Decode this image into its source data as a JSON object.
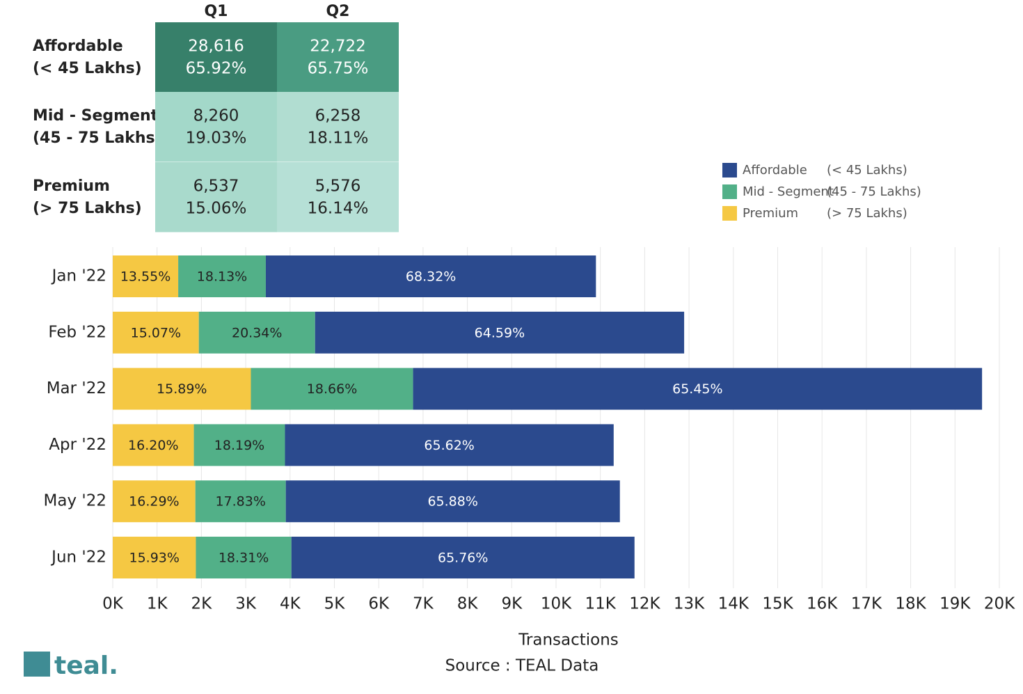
{
  "table": {
    "columns": [
      "Q1",
      "Q2"
    ],
    "rows": [
      {
        "label": [
          "Affordable",
          "(< 45 Lakhs)"
        ],
        "cells": [
          [
            "28,616",
            "65.92%"
          ],
          [
            "22,722",
            "65.75%"
          ]
        ]
      },
      {
        "label": [
          "Mid - Segment",
          "(45 - 75 Lakhs)"
        ],
        "cells": [
          [
            "8,260",
            "19.03%"
          ],
          [
            "6,258",
            "18.11%"
          ]
        ]
      },
      {
        "label": [
          "Premium",
          "(> 75 Lakhs)"
        ],
        "cells": [
          [
            "6,537",
            "15.06%"
          ],
          [
            "5,576",
            "16.14%"
          ]
        ]
      }
    ]
  },
  "chart_data": {
    "type": "stacked-bar-horizontal",
    "categories": [
      "Jan '22",
      "Feb '22",
      "Mar '22",
      "Apr '22",
      "May '22",
      "Jun '22"
    ],
    "series": [
      {
        "name": "Affordable",
        "range": "(< 45 Lakhs)",
        "color": "#2b4a8e",
        "values": [
          7447,
          8326,
          12835,
          7415,
          7536,
          7740
        ],
        "share_labels": [
          "68.32%",
          "64.59%",
          "65.45%",
          "65.62%",
          "65.88%",
          "65.76%"
        ]
      },
      {
        "name": "Mid - Segment",
        "range": "(45 - 75 Lakhs)",
        "color": "#52b088",
        "values": [
          1976,
          2622,
          3659,
          2055,
          2040,
          2155
        ],
        "share_labels": [
          "18.13%",
          "20.34%",
          "18.66%",
          "18.19%",
          "17.83%",
          "18.31%"
        ]
      },
      {
        "name": "Premium",
        "range": "(> 75 Lakhs)",
        "color": "#f5c843",
        "values": [
          1477,
          1942,
          3116,
          1830,
          1864,
          1875
        ],
        "share_labels": [
          "13.55%",
          "15.07%",
          "15.89%",
          "16.20%",
          "16.29%",
          "15.93%"
        ]
      }
    ],
    "xlim": [
      0,
      20000
    ],
    "xticks": [
      {
        "value": 0,
        "label": "0K"
      },
      {
        "value": 1000,
        "label": "1K"
      },
      {
        "value": 2000,
        "label": "2K"
      },
      {
        "value": 3000,
        "label": "3K"
      },
      {
        "value": 4000,
        "label": "4K"
      },
      {
        "value": 5000,
        "label": "5K"
      },
      {
        "value": 6000,
        "label": "6K"
      },
      {
        "value": 7000,
        "label": "7K"
      },
      {
        "value": 8000,
        "label": "8K"
      },
      {
        "value": 9000,
        "label": "9K"
      },
      {
        "value": 10000,
        "label": "10K"
      },
      {
        "value": 11000,
        "label": "11K"
      },
      {
        "value": 12000,
        "label": "12K"
      },
      {
        "value": 13000,
        "label": "13K"
      },
      {
        "value": 14000,
        "label": "14K"
      },
      {
        "value": 15000,
        "label": "15K"
      },
      {
        "value": 16000,
        "label": "16K"
      },
      {
        "value": 17000,
        "label": "17K"
      },
      {
        "value": 18000,
        "label": "18K"
      },
      {
        "value": 19000,
        "label": "19K"
      },
      {
        "value": 20000,
        "label": "20K"
      }
    ],
    "grid": true,
    "x_label": "Transactions",
    "source": "Source : TEAL Data",
    "logo": "teal."
  }
}
